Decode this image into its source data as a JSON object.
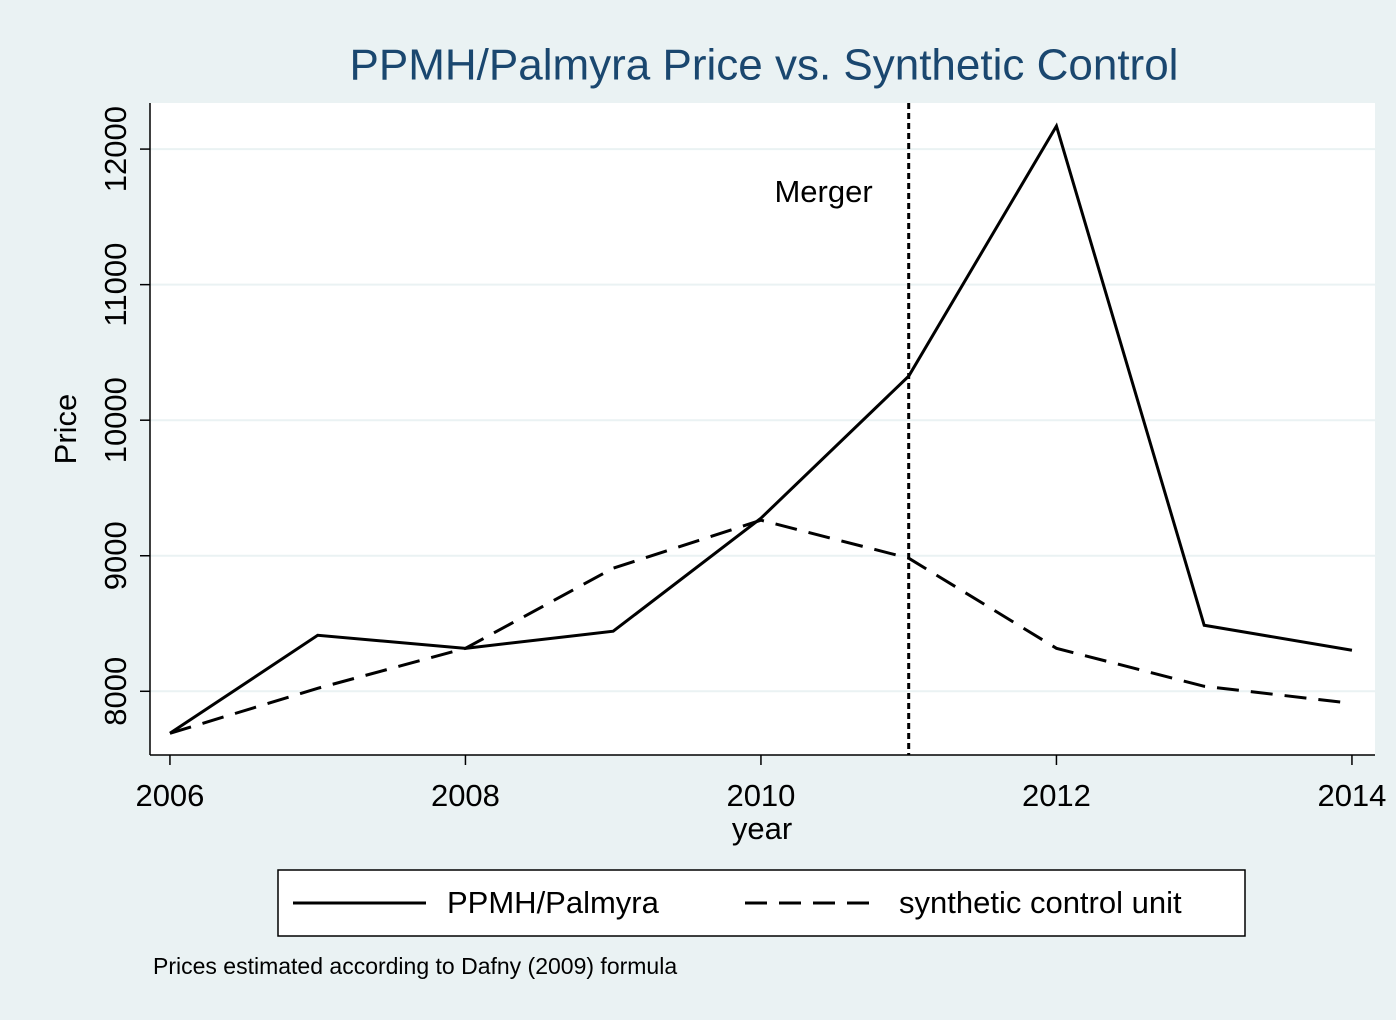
{
  "chart_data": {
    "type": "line",
    "title": "PPMH/Palmyra Price vs. Synthetic Control",
    "x_label": "year",
    "y_label": "Price",
    "note": "Prices estimated according to Dafny (2009) formula",
    "x": [
      2006,
      2007,
      2008,
      2009,
      2010,
      2011,
      2012,
      2013,
      2014
    ],
    "series": [
      {
        "name": "PPMH/Palmyra",
        "color": "#000000",
        "dash": "solid",
        "values": [
          7690,
          8413,
          8317,
          8443,
          9277,
          10325,
          12170,
          8487,
          8303
        ]
      },
      {
        "name": "synthetic control unit",
        "color": "#000000",
        "dash": "dashed",
        "values": [
          7690,
          8022,
          8317,
          8908,
          9262,
          8982,
          8317,
          8037,
          7911
        ]
      }
    ],
    "vline": {
      "x": 2011,
      "label": "Merger"
    },
    "xlim": [
      2005.865,
      2014.156
    ],
    "xticks": [
      2006,
      2008,
      2010,
      2012,
      2014
    ],
    "ylim": [
      7530,
      12340
    ],
    "yticks": [
      8000,
      9000,
      10000,
      11000,
      12000
    ],
    "grid": true,
    "legend": "bottom"
  }
}
